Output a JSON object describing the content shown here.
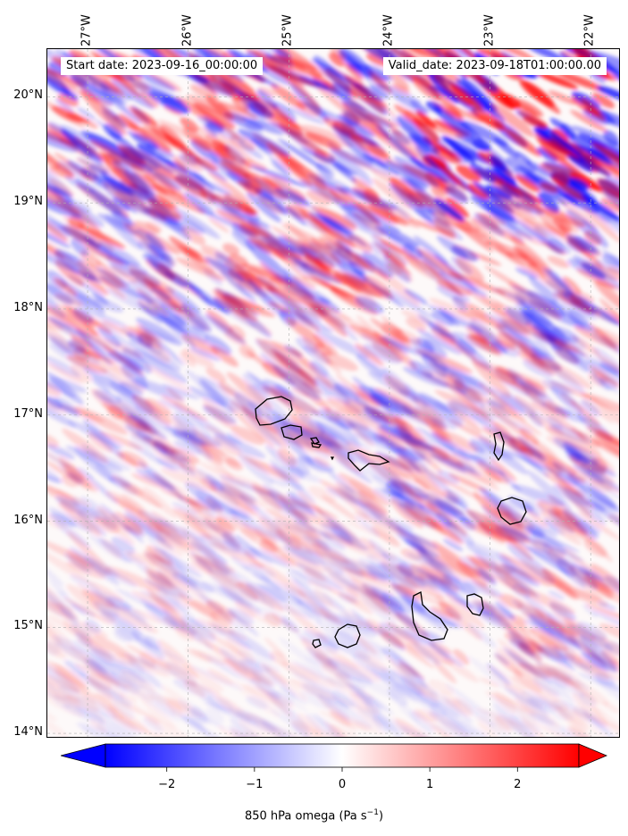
{
  "map": {
    "start_date": "Start date: 2023-09-16_00:00:00",
    "valid_date": "Valid_date: 2023-09-18T01:00:00.00",
    "extent": {
      "lon_min": -27.4,
      "lon_max": -21.7,
      "lat_min": 13.95,
      "lat_max": 20.45
    },
    "longitude_ticks": [
      {
        "value": -27,
        "label": "27°W"
      },
      {
        "value": -26,
        "label": "26°W"
      },
      {
        "value": -25,
        "label": "25°W"
      },
      {
        "value": -24,
        "label": "24°W"
      },
      {
        "value": -23,
        "label": "23°W"
      },
      {
        "value": -22,
        "label": "22°W"
      }
    ],
    "latitude_ticks": [
      {
        "value": 20,
        "label": "20°N"
      },
      {
        "value": 19,
        "label": "19°N"
      },
      {
        "value": 18,
        "label": "18°N"
      },
      {
        "value": 17,
        "label": "17°N"
      },
      {
        "value": 16,
        "label": "16°N"
      },
      {
        "value": 15,
        "label": "15°N"
      },
      {
        "value": 14,
        "label": "14°N"
      }
    ],
    "gridlines": true,
    "field": "850 hPa omega",
    "colormap": "bwr",
    "colors": {
      "negative": "#0000ff",
      "zero": "#ffffff",
      "positive": "#ff0000",
      "coastline": "#000000"
    },
    "islands": [
      "Santo Antão",
      "São Vicente",
      "Santa Luzia",
      "São Nicolau",
      "Sal",
      "Boa Vista",
      "Maio",
      "Santiago",
      "Fogo",
      "Brava"
    ]
  },
  "colorbar": {
    "min": -2.7,
    "max": 2.7,
    "extend": "both",
    "ticks": [
      {
        "value": -2,
        "label": "−2"
      },
      {
        "value": -1,
        "label": "−1"
      },
      {
        "value": 0,
        "label": "0"
      },
      {
        "value": 1,
        "label": "1"
      },
      {
        "value": 2,
        "label": "2"
      }
    ],
    "label_main": "850 hPa omega (Pa s",
    "label_exp": "−1",
    "label_tail": ")"
  }
}
